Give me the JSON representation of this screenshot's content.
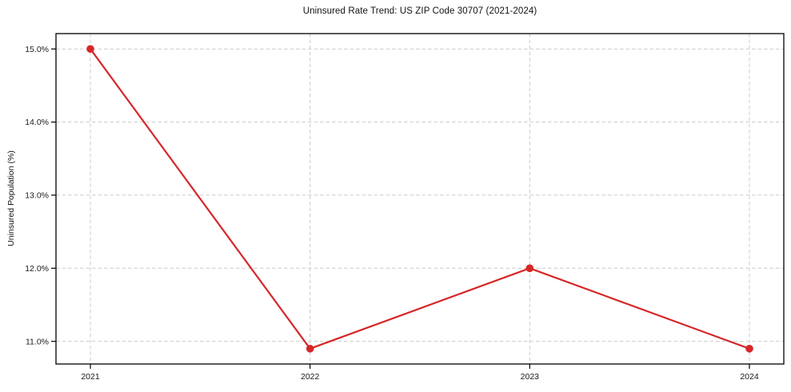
{
  "chart_data": {
    "type": "line",
    "title": "Uninsured Rate Trend: US ZIP Code 30707 (2021-2024)",
    "xlabel": "",
    "ylabel": "Uninsured Population (%)",
    "categories": [
      "2021",
      "2022",
      "2023",
      "2024"
    ],
    "series": [
      {
        "name": "uninsured-rate",
        "values": [
          15.0,
          10.9,
          12.0,
          10.9
        ],
        "color": "#d62728"
      }
    ],
    "y_ticks": [
      11.0,
      12.0,
      13.0,
      14.0,
      15.0
    ],
    "y_tick_labels": [
      "11.0%",
      "12.0%",
      "13.0%",
      "14.0%",
      "15.0%"
    ],
    "ylim": [
      10.69,
      15.21
    ],
    "grid": true,
    "grid_style": "dashed",
    "legend_position": "none",
    "line_width": 2.2,
    "marker": "circle",
    "marker_radius": 4.8,
    "colors": {
      "line": "#d62728",
      "grid": "#cccccc",
      "spine": "#000000",
      "tick_text": "#1a1a1a",
      "background": "#ffffff"
    }
  }
}
